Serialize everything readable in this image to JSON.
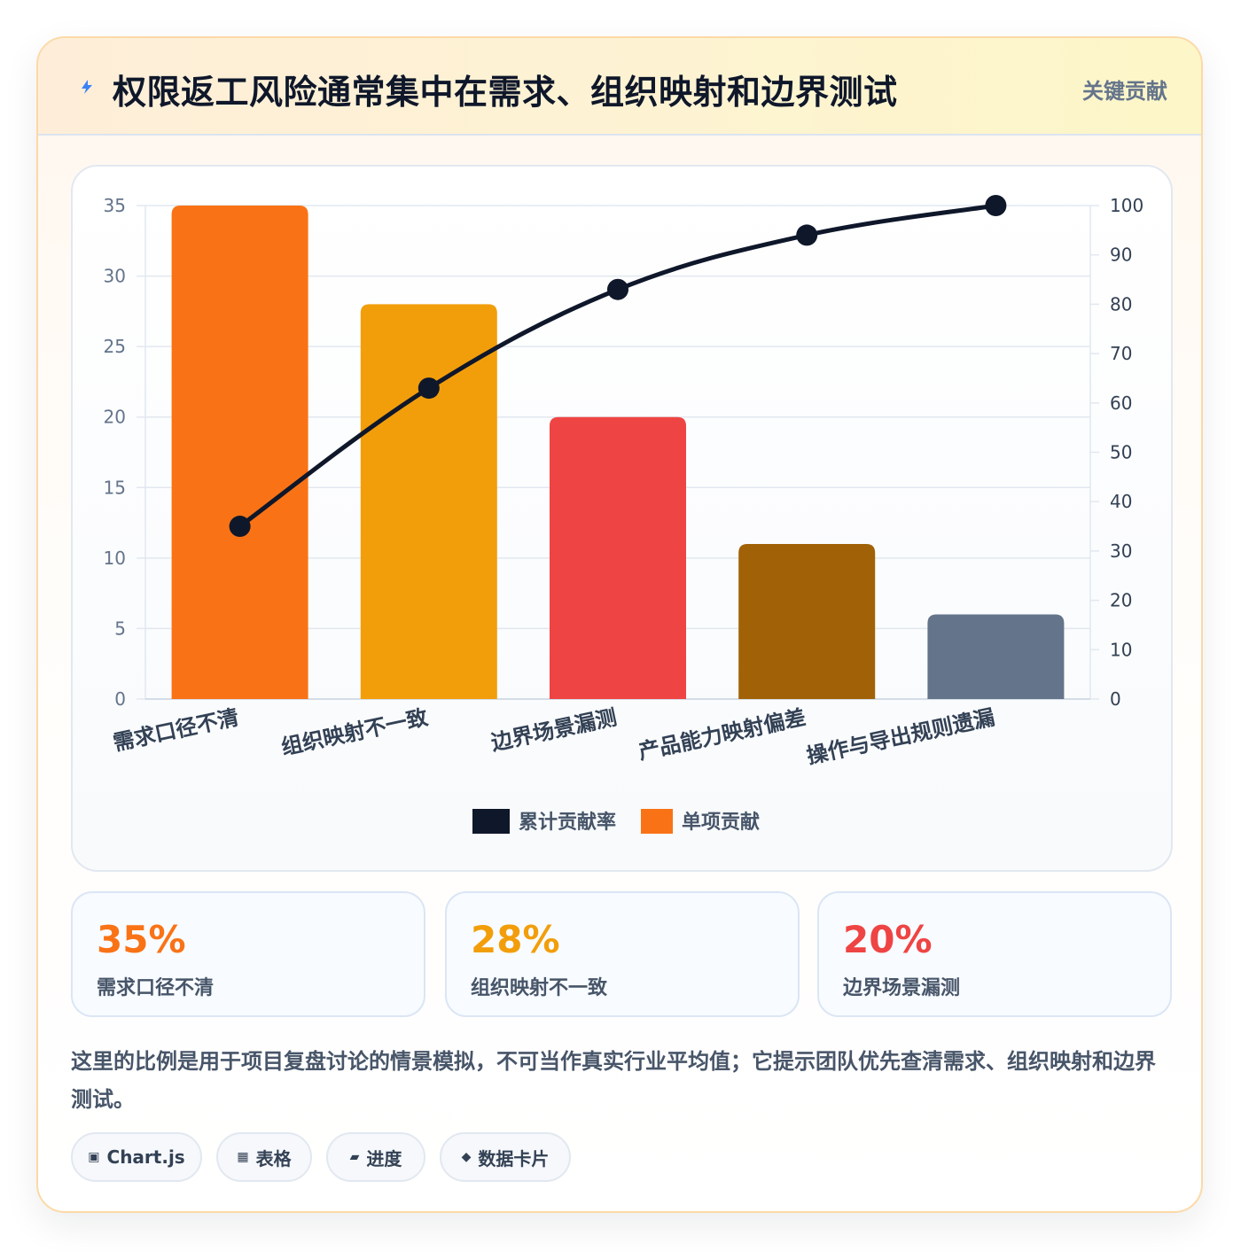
{
  "header": {
    "title": "权限返工风险通常集中在需求、组织映射和边界测试",
    "badge": "关键贡献"
  },
  "chart_data": {
    "type": "bar",
    "categories": [
      "需求口径不清",
      "组织映射不一致",
      "边界场景漏测",
      "产品能力映射偏差",
      "操作与导出规则遗漏"
    ],
    "series": [
      {
        "name": "单项贡献",
        "type": "bar",
        "axis": "left",
        "values": [
          35,
          28,
          20,
          11,
          6
        ],
        "colors": [
          "#f97316",
          "#f29e0b",
          "#ef4444",
          "#a16207",
          "#64748b"
        ]
      },
      {
        "name": "累计贡献率",
        "type": "line",
        "axis": "right",
        "values": [
          35,
          63,
          83,
          94,
          100
        ],
        "color": "#0f172a"
      }
    ],
    "y_left": {
      "min": 0,
      "max": 35,
      "ticks": [
        0,
        5,
        10,
        15,
        20,
        25,
        30,
        35
      ]
    },
    "y_right": {
      "min": 0,
      "max": 100,
      "ticks": [
        0,
        10,
        20,
        30,
        40,
        50,
        60,
        70,
        80,
        90,
        100
      ]
    },
    "legend": [
      {
        "label": "累计贡献率",
        "color": "#0f172a"
      },
      {
        "label": "单项贡献",
        "color": "#f97316"
      }
    ],
    "legend_position": "bottom",
    "grid": true
  },
  "stats": [
    {
      "value": "35%",
      "label": "需求口径不清",
      "color": "#f97316"
    },
    {
      "value": "28%",
      "label": "组织映射不一致",
      "color": "#f29e0b"
    },
    {
      "value": "20%",
      "label": "边界场景漏测",
      "color": "#ef4444"
    }
  ],
  "note": "这里的比例是用于项目复盘讨论的情景模拟，不可当作真实行业平均值；它提示团队优先查清需求、组织映射和边界测试。",
  "tags": [
    {
      "icon": "▣",
      "label": "Chart.js"
    },
    {
      "icon": "▦",
      "label": "表格"
    },
    {
      "icon": "▰",
      "label": "进度"
    },
    {
      "icon": "◆",
      "label": "数据卡片"
    }
  ]
}
